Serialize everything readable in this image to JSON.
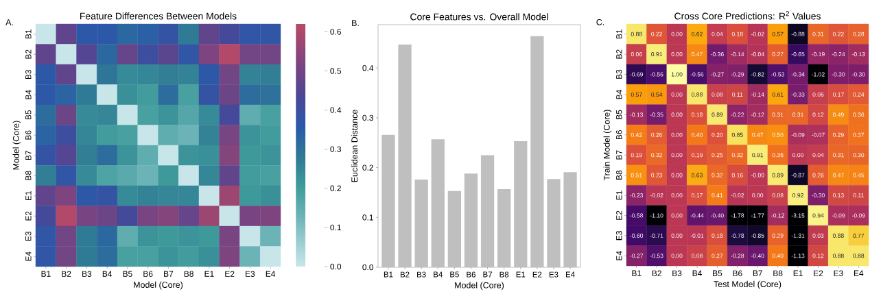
{
  "chart_data": [
    {
      "type": "heatmap",
      "title": "Feature Differences Between Models",
      "xlabel": "Model (Core)",
      "ylabel": "Model (Core)",
      "annotations": [
        "A."
      ],
      "categories": [
        "B1",
        "B2",
        "B3",
        "B4",
        "B5",
        "B6",
        "B7",
        "B8",
        "E1",
        "E2",
        "E3",
        "E4"
      ],
      "y_categories": [
        "B1",
        "B2",
        "B3",
        "B4",
        "B5",
        "B6",
        "B7",
        "B8",
        "E1",
        "E2",
        "E3",
        "E4"
      ],
      "cells": [
        [
          0,
          0.47,
          0.36,
          0.36,
          0.32,
          0.34,
          0.38,
          0.28,
          0.47,
          0.42,
          0.37,
          0.37
        ],
        [
          0.47,
          0,
          0.45,
          0.32,
          0.48,
          0.4,
          0.46,
          0.37,
          0.52,
          0.61,
          0.5,
          0.5
        ],
        [
          0.36,
          0.47,
          0,
          0.29,
          0.24,
          0.25,
          0.27,
          0.26,
          0.36,
          0.5,
          0.26,
          0.27
        ],
        [
          0.36,
          0.33,
          0.28,
          0,
          0.23,
          0.2,
          0.31,
          0.19,
          0.38,
          0.49,
          0.31,
          0.3
        ],
        [
          0.31,
          0.49,
          0.24,
          0.25,
          0,
          0.19,
          0.22,
          0.17,
          0.24,
          0.42,
          0.15,
          0.19
        ],
        [
          0.33,
          0.4,
          0.25,
          0.2,
          0.19,
          0,
          0.15,
          0.13,
          0.26,
          0.51,
          0.22,
          0.2
        ],
        [
          0.38,
          0.45,
          0.27,
          0.31,
          0.22,
          0.15,
          0,
          0.22,
          0.23,
          0.53,
          0.21,
          0.22
        ],
        [
          0.27,
          0.37,
          0.24,
          0.18,
          0.16,
          0.13,
          0.21,
          0,
          0.25,
          0.47,
          0.2,
          0.19
        ],
        [
          0.47,
          0.52,
          0.36,
          0.38,
          0.24,
          0.26,
          0.25,
          0.25,
          0,
          0.57,
          0.21,
          0.23
        ],
        [
          0.42,
          0.61,
          0.51,
          0.49,
          0.42,
          0.51,
          0.53,
          0.48,
          0.57,
          0,
          0.51,
          0.52
        ],
        [
          0.37,
          0.5,
          0.28,
          0.32,
          0.15,
          0.22,
          0.21,
          0.22,
          0.21,
          0.51,
          0,
          0.13
        ],
        [
          0.37,
          0.5,
          0.28,
          0.31,
          0.19,
          0.19,
          0.22,
          0.2,
          0.23,
          0.52,
          0.13,
          0
        ]
      ],
      "clim": [
        0,
        0.62
      ],
      "cticks": [
        {
          "value": 0,
          "label": "0.0"
        },
        {
          "value": 0.1,
          "label": "0.1"
        },
        {
          "value": 0.2,
          "label": "0.2"
        },
        {
          "value": 0.3,
          "label": "0.3"
        },
        {
          "value": 0.4,
          "label": "0.4"
        },
        {
          "value": 0.5,
          "label": "0.5"
        },
        {
          "value": 0.6,
          "label": "0.6"
        }
      ]
    },
    {
      "type": "bar",
      "title": "Core Features vs. Overall Model",
      "xlabel": "Model (Core)",
      "ylabel": "Euclidean Distance",
      "annotations": [
        "B."
      ],
      "categories": [
        "B1",
        "B2",
        "B3",
        "B4",
        "B5",
        "B6",
        "B7",
        "B8",
        "E1",
        "E2",
        "E3",
        "E4"
      ],
      "values": [
        0.266,
        0.447,
        0.176,
        0.257,
        0.153,
        0.188,
        0.225,
        0.157,
        0.253,
        0.464,
        0.177,
        0.191
      ],
      "color": "#bfbfbf",
      "ylim": [
        0,
        0.487
      ],
      "yticks": [
        {
          "value": 0,
          "label": "0.0"
        },
        {
          "value": 0.1,
          "label": "0.1"
        },
        {
          "value": 0.2,
          "label": "0.2"
        },
        {
          "value": 0.3,
          "label": "0.3"
        },
        {
          "value": 0.4,
          "label": "0.4"
        }
      ]
    },
    {
      "type": "heatmap",
      "title": "Cross Core Predictions: R$^{2}$ Values",
      "xlabel": "Test Model (Core)",
      "ylabel": "Train Model (Core)",
      "annotations": [
        "C."
      ],
      "categories": [
        "B1",
        "B2",
        "B3",
        "B4",
        "B5",
        "B6",
        "B7",
        "B8",
        "E1",
        "E2",
        "E3",
        "E4"
      ],
      "y_categories": [
        "B1",
        "B2",
        "B3",
        "B4",
        "B5",
        "B6",
        "B7",
        "B8",
        "E1",
        "E2",
        "E3",
        "E4"
      ],
      "cells": [
        [
          0.88,
          0.22,
          0,
          0.62,
          0.04,
          0.18,
          -0.02,
          0.57,
          -0.88,
          0.31,
          0.22,
          0.28
        ],
        [
          0.06,
          0.91,
          0,
          0.47,
          -0.36,
          -0.14,
          -0.04,
          0.27,
          -0.65,
          -0.19,
          -0.24,
          -0.13
        ],
        [
          -0.69,
          -0.56,
          1.0,
          -0.56,
          -0.27,
          -0.29,
          -0.82,
          -0.53,
          -0.34,
          -1.02,
          -0.3,
          -0.3
        ],
        [
          0.57,
          0.54,
          0,
          0.88,
          0.08,
          0.11,
          -0.14,
          0.61,
          -0.33,
          0.06,
          0.17,
          0.24
        ],
        [
          -0.13,
          -0.35,
          0,
          0.18,
          0.89,
          -0.22,
          -0.12,
          0.31,
          0.31,
          0.12,
          0.49,
          0.36
        ],
        [
          0.42,
          0.26,
          0,
          0.4,
          0.2,
          0.85,
          0.47,
          0.5,
          -0.09,
          -0.07,
          0.29,
          0.37
        ],
        [
          0.19,
          0.32,
          0,
          0.19,
          0.25,
          0.32,
          0.91,
          0.36,
          0,
          0.04,
          0.31,
          0.3
        ],
        [
          0.51,
          0.23,
          0,
          0.63,
          0.32,
          0.16,
          0,
          0.89,
          -0.87,
          0.26,
          0.47,
          0.45
        ],
        [
          -0.23,
          -0.02,
          0,
          0.17,
          0.41,
          -0.02,
          0,
          0.08,
          0.92,
          -0.3,
          0.13,
          0.11
        ],
        [
          -0.58,
          -1.1,
          0,
          -0.44,
          -0.4,
          -1.78,
          -1.77,
          -0.12,
          -3.15,
          0.94,
          -0.09,
          -0.09
        ],
        [
          -0.6,
          -0.71,
          0,
          -0.01,
          0.18,
          -0.78,
          -0.85,
          0.29,
          -1.31,
          0.03,
          0.88,
          0.77
        ],
        [
          -0.27,
          -0.53,
          0,
          0.08,
          0.27,
          -0.28,
          -0.4,
          0.4,
          -1.13,
          0.12,
          0.88,
          0.88
        ]
      ],
      "cell_labels": [
        [
          "0.88",
          "0.22",
          "0.00",
          "0.62",
          "0.04",
          "0.18",
          "-0.02",
          "0.57",
          "-0.88",
          "0.31",
          "0.22",
          "0.28"
        ],
        [
          "0.06",
          "0.91",
          "0.00",
          "0.47",
          "-0.36",
          "-0.14",
          "-0.04",
          "0.27",
          "-0.65",
          "-0.19",
          "-0.24",
          "-0.13"
        ],
        [
          "-0.69",
          "-0.56",
          "1.00",
          "-0.56",
          "-0.27",
          "-0.29",
          "-0.82",
          "-0.53",
          "-0.34",
          "-1.02",
          "-0.30",
          "-0.30"
        ],
        [
          "0.57",
          "0.54",
          "0.00",
          "0.88",
          "0.08",
          "0.11",
          "-0.14",
          "0.61",
          "-0.33",
          "0.06",
          "0.17",
          "0.24"
        ],
        [
          "-0.13",
          "-0.35",
          "0.00",
          "0.18",
          "0.89",
          "-0.22",
          "-0.12",
          "0.31",
          "0.31",
          "0.12",
          "0.49",
          "0.36"
        ],
        [
          "0.42",
          "0.26",
          "0.00",
          "0.40",
          "0.20",
          "0.85",
          "0.47",
          "0.50",
          "-0.09",
          "-0.07",
          "0.29",
          "0.37"
        ],
        [
          "0.19",
          "0.32",
          "0.00",
          "0.19",
          "0.25",
          "0.32",
          "0.91",
          "0.36",
          "0.00",
          "0.04",
          "0.31",
          "0.30"
        ],
        [
          "0.51",
          "0.23",
          "0.00",
          "0.63",
          "0.32",
          "0.16",
          "-0.00",
          "0.89",
          "-0.87",
          "0.26",
          "0.47",
          "0.45"
        ],
        [
          "-0.23",
          "-0.02",
          "0.00",
          "0.17",
          "0.41",
          "-0.02",
          "0.00",
          "0.08",
          "0.92",
          "-0.30",
          "0.13",
          "0.11"
        ],
        [
          "-0.58",
          "-1.10",
          "0.00",
          "-0.44",
          "-0.40",
          "-1.78",
          "-1.77",
          "-0.12",
          "-3.15",
          "0.94",
          "-0.09",
          "-0.09"
        ],
        [
          "-0.60",
          "-0.71",
          "0.00",
          "-0.01",
          "0.18",
          "-0.78",
          "-0.85",
          "0.29",
          "-1.31",
          "0.03",
          "0.88",
          "0.77"
        ],
        [
          "-0.27",
          "-0.53",
          "0.00",
          "0.08",
          "0.27",
          "-0.28",
          "-0.40",
          "0.40",
          "-1.13",
          "0.12",
          "0.88",
          "0.88"
        ]
      ]
    }
  ]
}
